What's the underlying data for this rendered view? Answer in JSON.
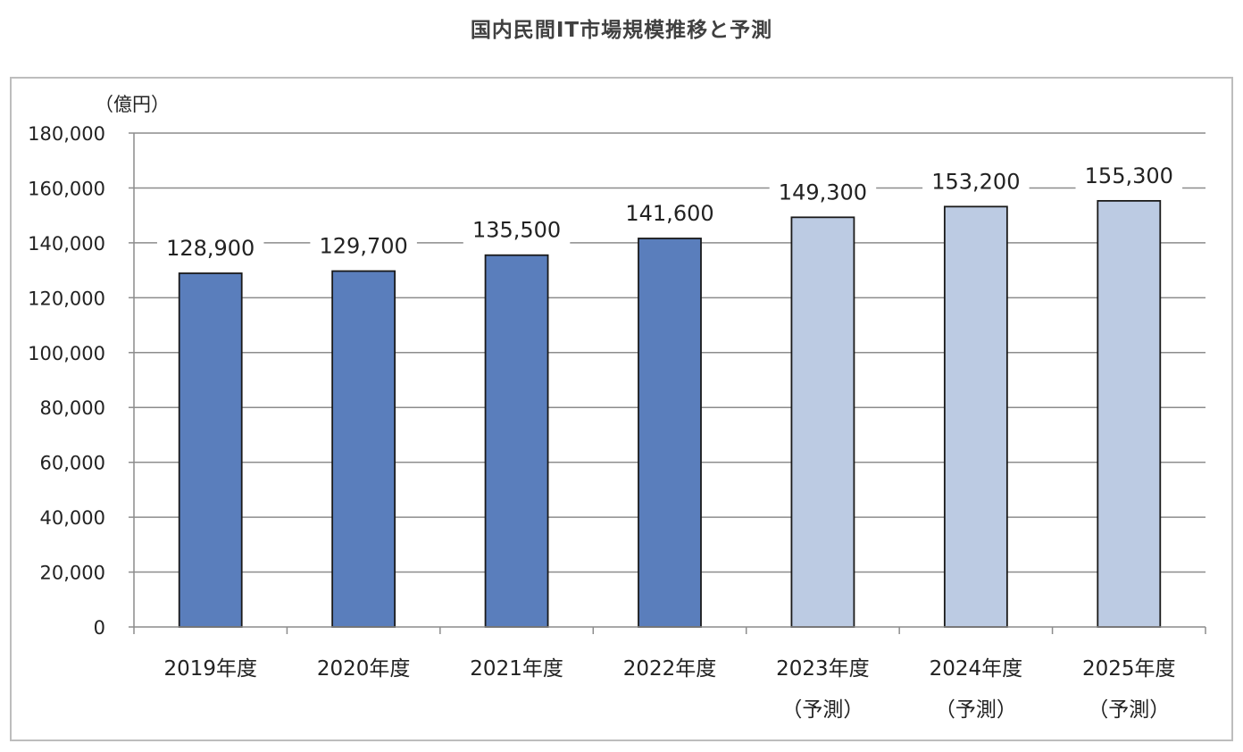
{
  "page": {
    "title": "国内民間IT市場規模推移と予測"
  },
  "chart_data": {
    "type": "bar",
    "title": "国内民間IT市場規模推移と予測",
    "ylabel": "（億円）",
    "xlabel": "",
    "ylim": [
      0,
      180000
    ],
    "yticks": [
      0,
      20000,
      40000,
      60000,
      80000,
      100000,
      120000,
      140000,
      160000,
      180000
    ],
    "ytick_labels": [
      "0",
      "20,000",
      "40,000",
      "60,000",
      "80,000",
      "100,000",
      "120,000",
      "140,000",
      "160,000",
      "180,000"
    ],
    "grid": true,
    "legend": "none",
    "categories": [
      [
        "2019年度"
      ],
      [
        "2020年度"
      ],
      [
        "2021年度"
      ],
      [
        "2022年度"
      ],
      [
        "2023年度",
        "（予測）"
      ],
      [
        "2024年度",
        "（予測）"
      ],
      [
        "2025年度",
        "（予測）"
      ]
    ],
    "values": [
      128900,
      129700,
      135500,
      141600,
      149300,
      153200,
      155300
    ],
    "value_labels": [
      "128,900",
      "129,700",
      "135,500",
      "141,600",
      "149,300",
      "153,200",
      "155,300"
    ],
    "forecast": [
      false,
      false,
      false,
      false,
      true,
      true,
      true
    ],
    "colors": {
      "actual": "#5a7ebc",
      "forecast": "#bccbe3",
      "bar_outline": "#1a1a1a",
      "grid": "#8c8c8c",
      "axis": "#8c8c8c"
    }
  }
}
